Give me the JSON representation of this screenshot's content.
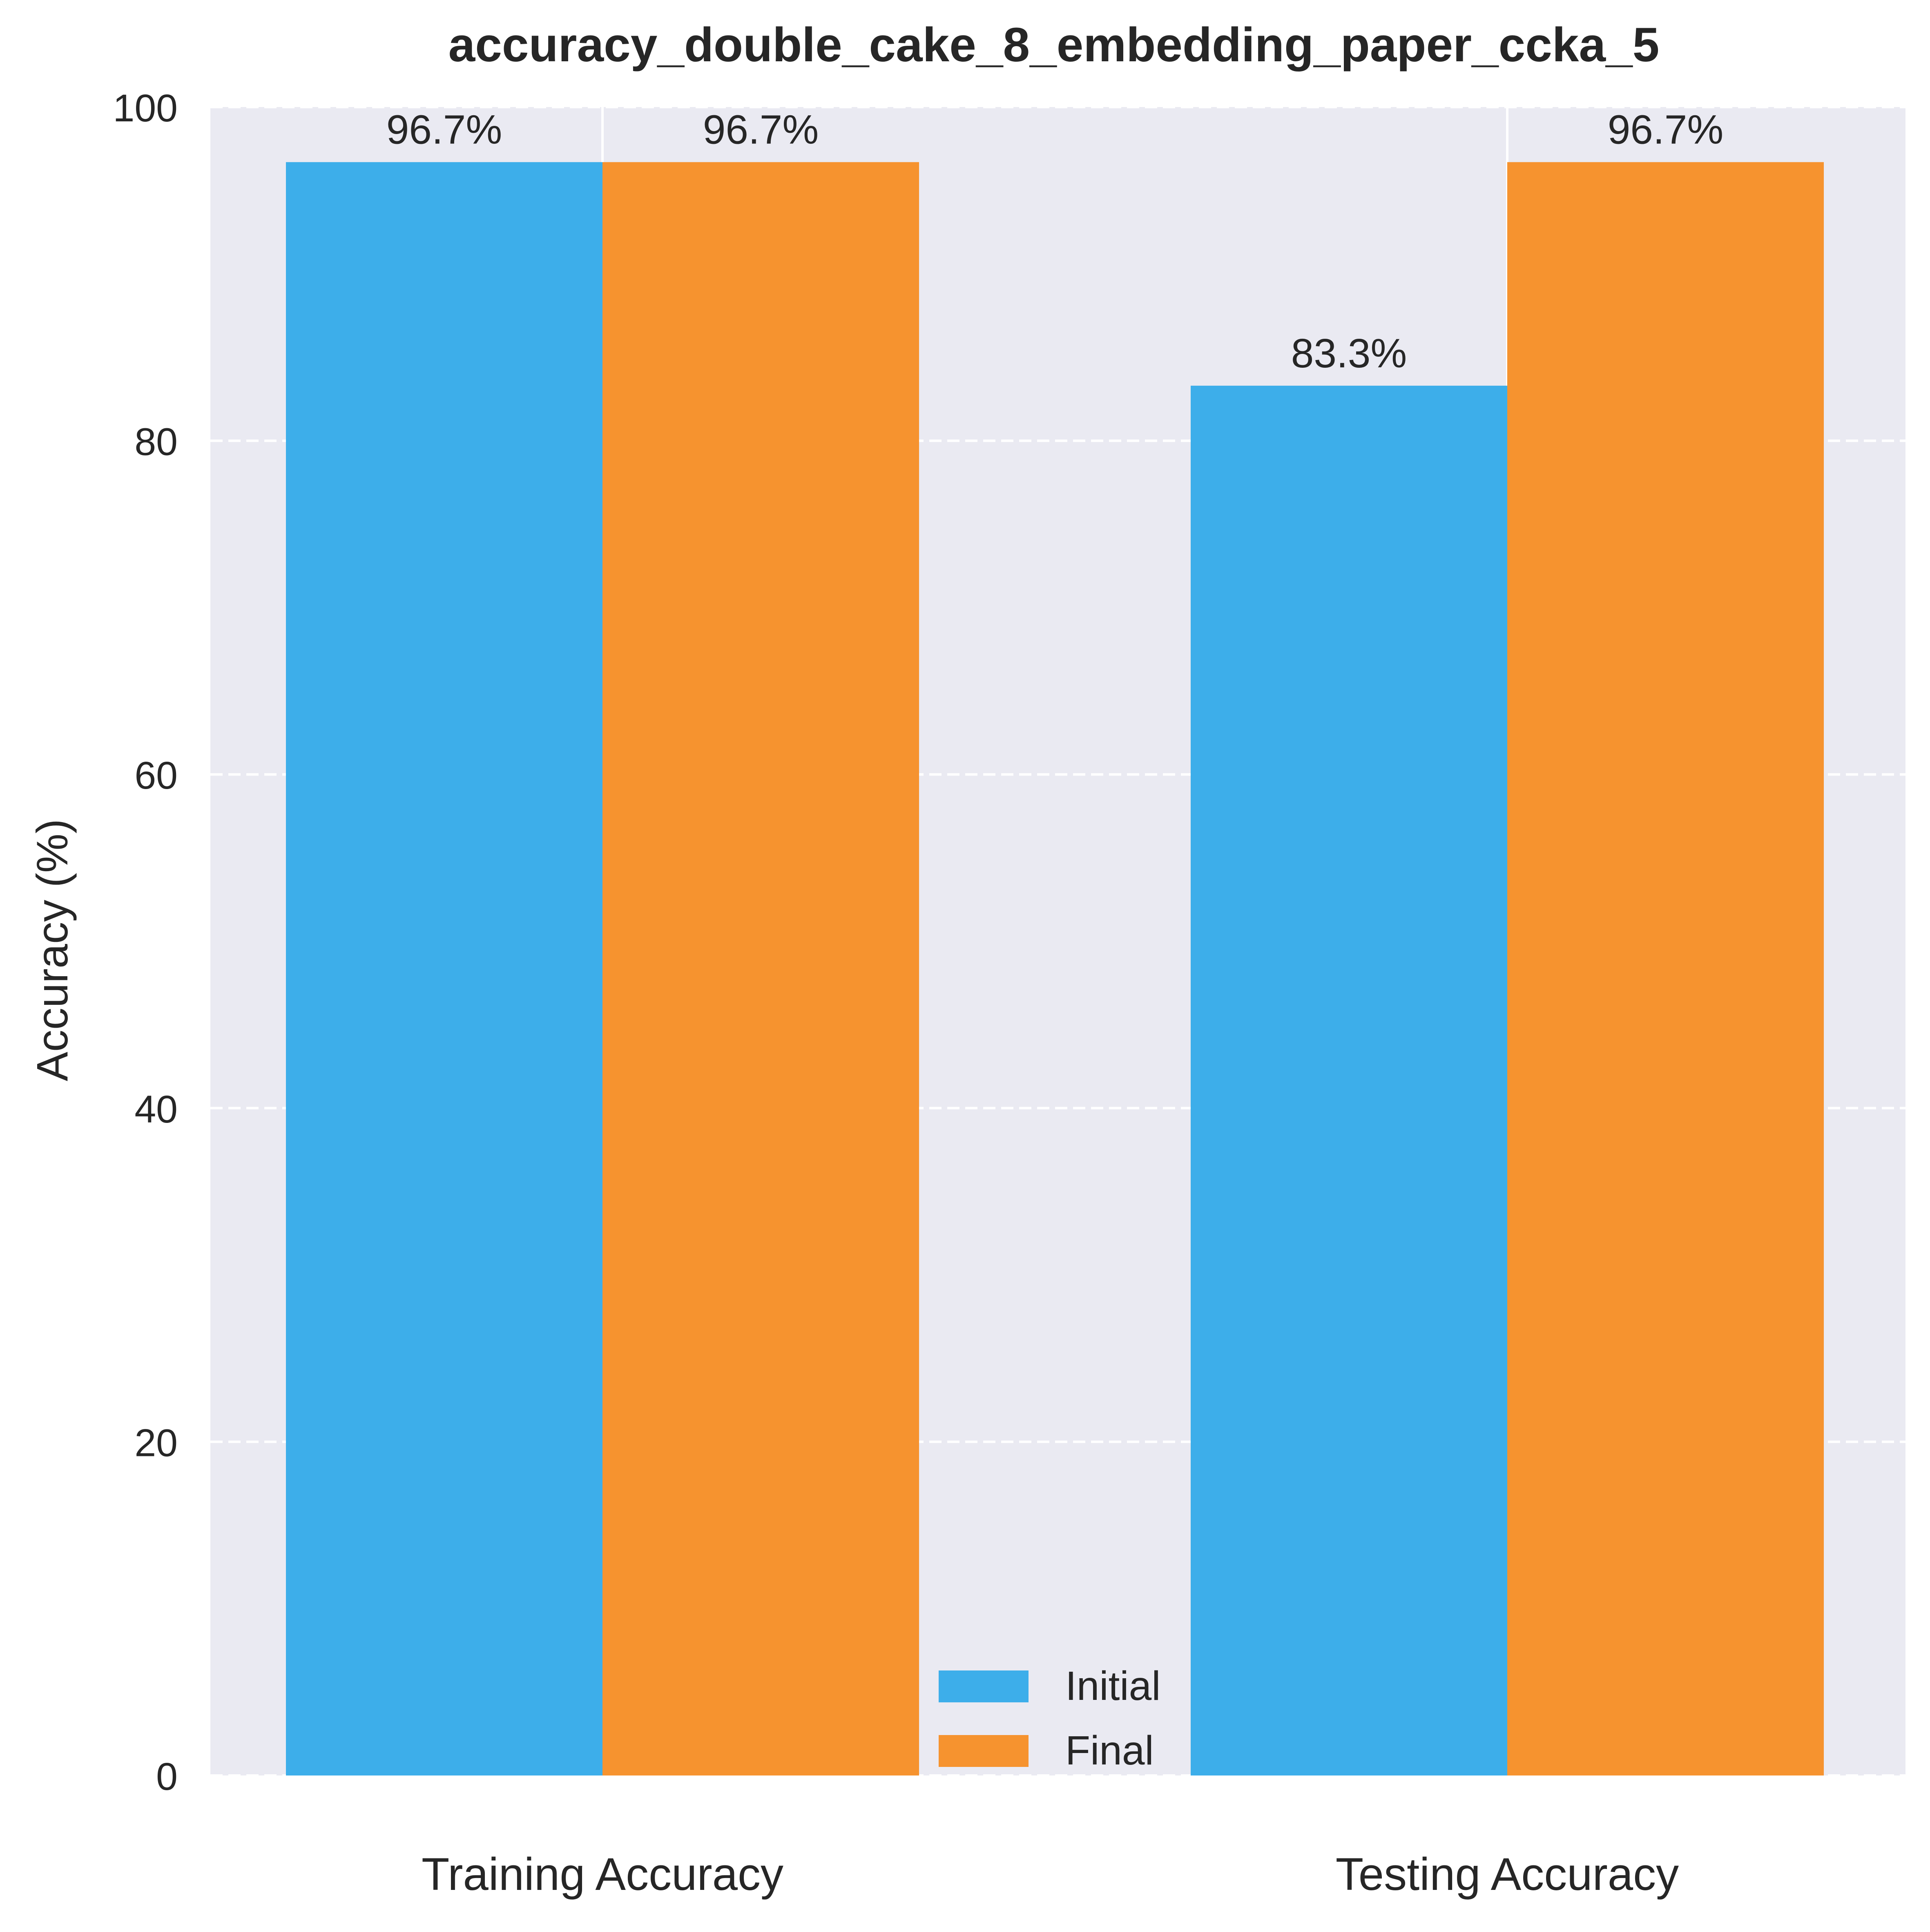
{
  "chart_data": {
    "type": "bar",
    "title": "accuracy_double_cake_8_embedding_paper_ccka_5",
    "xlabel": "",
    "ylabel": "Accuracy (%)",
    "categories": [
      "Training Accuracy",
      "Testing Accuracy"
    ],
    "series": [
      {
        "name": "Initial",
        "values": [
          96.7,
          83.3
        ],
        "labels": [
          "96.7%",
          "83.3%"
        ],
        "color": "#3daeea"
      },
      {
        "name": "Final",
        "values": [
          96.7,
          96.7
        ],
        "labels": [
          "96.7%",
          "96.7%"
        ],
        "color": "#f6932f"
      }
    ],
    "ylim": [
      0,
      100
    ],
    "yticks": [
      0,
      20,
      40,
      60,
      80,
      100
    ],
    "grid": true,
    "legend_position": "bottom-center",
    "colors": {
      "plot_background": "#eaeaf2",
      "grid": "#ffffff",
      "text": "#262626"
    }
  }
}
